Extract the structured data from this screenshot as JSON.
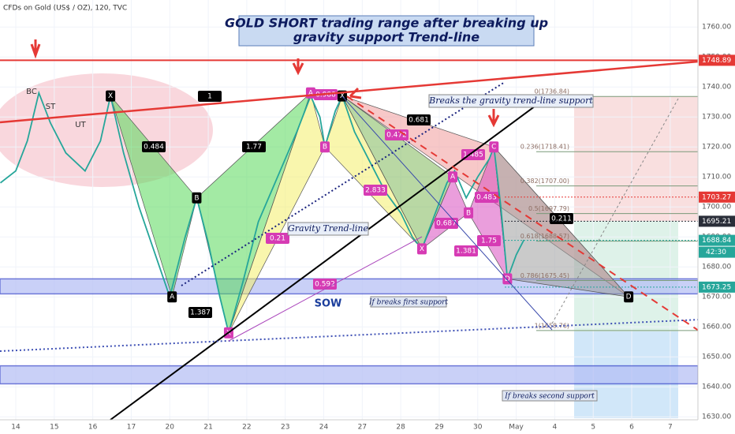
{
  "chart_data": {
    "type": "line",
    "header": "CFDs on Gold (US$ / OZ), 120, TVC",
    "title": "GOLD SHORT trading range after breaking up",
    "subtitle": "gravity support Trend-line",
    "x": [
      -0.4,
      0.0,
      0.3,
      0.6,
      0.9,
      1.3,
      1.8,
      2.2,
      2.46,
      2.8,
      3.2,
      3.6,
      4.0,
      4.4,
      4.7,
      5.0,
      5.3,
      5.53,
      5.9,
      6.3,
      6.8,
      7.3,
      7.66,
      7.9,
      8.03,
      8.3,
      8.48,
      8.8,
      9.2,
      9.6,
      10.0,
      10.3,
      10.55,
      10.9,
      11.2,
      11.4,
      11.7,
      12.0,
      12.3,
      12.42,
      12.6,
      12.77,
      13.0,
      13.2
    ],
    "series": [
      {
        "color": "#26a69a",
        "values": [
          1708,
          1712,
          1722,
          1738,
          1728,
          1718,
          1712,
          1722,
          1737,
          1718,
          1700,
          1685,
          1670,
          1690,
          1703,
          1688,
          1670,
          1658,
          1675,
          1695,
          1710,
          1725,
          1737,
          1730,
          1720,
          1732,
          1737,
          1725,
          1715,
          1705,
          1698,
          1690,
          1686,
          1698,
          1708,
          1712,
          1703,
          1710,
          1716,
          1720,
          1700,
          1676,
          1684,
          1689
        ]
      }
    ],
    "xlim": [
      -0.41,
      17.72
    ],
    "ylim": [
      1629,
      1769
    ],
    "xticks": [
      {
        "value": 0,
        "label": "14"
      },
      {
        "value": 1,
        "label": "15"
      },
      {
        "value": 2,
        "label": "16"
      },
      {
        "value": 3,
        "label": "17"
      },
      {
        "value": 4,
        "label": "20"
      },
      {
        "value": 5,
        "label": "21"
      },
      {
        "value": 6,
        "label": "22"
      },
      {
        "value": 7,
        "label": "23"
      },
      {
        "value": 8,
        "label": "24"
      },
      {
        "value": 9,
        "label": "27"
      },
      {
        "value": 10,
        "label": "28"
      },
      {
        "value": 11,
        "label": "29"
      },
      {
        "value": 12,
        "label": "30"
      },
      {
        "value": 13,
        "label": "May"
      },
      {
        "value": 14,
        "label": "4"
      },
      {
        "value": 15,
        "label": "5"
      },
      {
        "value": 16,
        "label": "6"
      },
      {
        "value": 17,
        "label": "7"
      }
    ],
    "yticks": [
      {
        "value": 1630,
        "label": "1630.00"
      },
      {
        "value": 1640,
        "label": "1640.00"
      },
      {
        "value": 1650,
        "label": "1650.00"
      },
      {
        "value": 1660,
        "label": "1660.00"
      },
      {
        "value": 1670,
        "label": "1670.00"
      },
      {
        "value": 1680,
        "label": "1680.00"
      },
      {
        "value": 1690,
        "label": "1690.00"
      },
      {
        "value": 1700,
        "label": "1700.00"
      },
      {
        "value": 1710,
        "label": "1710.00"
      },
      {
        "value": 1720,
        "label": "1720.00"
      },
      {
        "value": 1730,
        "label": "1730.00"
      },
      {
        "value": 1740,
        "label": "1740.00"
      },
      {
        "value": 1750,
        "label": "1750.00"
      },
      {
        "value": 1760,
        "label": "1760.00"
      }
    ],
    "price_tags": [
      {
        "value": 1748.89,
        "color": "#e53935"
      },
      {
        "value": 1703.27,
        "color": "#e53935"
      },
      {
        "value": 1695.21,
        "color": "#2a2e39"
      },
      {
        "value": 1688.84,
        "color": "#26a69a"
      },
      {
        "value": 1673.25,
        "color": "#26a69a"
      }
    ],
    "countdown": "42:30",
    "support_zones": [
      [
        1671,
        1676
      ],
      [
        1641,
        1647
      ]
    ],
    "fib_levels": [
      {
        "label": "0(1736.84)",
        "value": 1736.84
      },
      {
        "label": "0.236(1718.41)",
        "value": 1718.41
      },
      {
        "label": "0.382(1707.00)",
        "value": 1707.0
      },
      {
        "label": "0.5(1697.79)",
        "value": 1697.79
      },
      {
        "label": "0.618(1688.57)",
        "value": 1688.57
      },
      {
        "label": "0.786(1675.45)",
        "value": 1675.45
      },
      {
        "label": "1(1658.76)",
        "value": 1658.76
      }
    ],
    "pattern_points": [
      {
        "label": "X",
        "x": 2.46,
        "y": 1737
      },
      {
        "label": "A",
        "x": 4.06,
        "y": 1670
      },
      {
        "label": "B",
        "x": 4.7,
        "y": 1703
      },
      {
        "label": "X",
        "x": 5.53,
        "y": 1658
      },
      {
        "label": "A",
        "x": 7.66,
        "y": 1738
      },
      {
        "label": "B",
        "x": 8.03,
        "y": 1720
      },
      {
        "label": "X",
        "x": 8.48,
        "y": 1737
      },
      {
        "label": "X",
        "x": 10.55,
        "y": 1686
      },
      {
        "label": "A",
        "x": 11.35,
        "y": 1710
      },
      {
        "label": "B",
        "x": 11.76,
        "y": 1698
      },
      {
        "label": "C",
        "x": 12.42,
        "y": 1720
      },
      {
        "label": "D",
        "x": 12.77,
        "y": 1676
      },
      {
        "label": "D",
        "x": 15.92,
        "y": 1670
      }
    ],
    "ratio_labels": [
      0.484,
      1.77,
      1.387,
      1,
      0.988,
      0.681,
      0.472,
      2.833,
      0.21,
      0.592,
      1.485,
      0.483,
      0.687,
      1.75,
      1.381,
      0.211
    ],
    "annotations": {
      "breaks_gravity": "Breaks the gravity trend-line support",
      "gravity_trendline": "Gravity Trend-line",
      "sow": "SOW",
      "first_support": "If breaks first support",
      "second_support": "If breaks second support",
      "bc": "BC",
      "st": "ST",
      "ut": "UT"
    }
  }
}
